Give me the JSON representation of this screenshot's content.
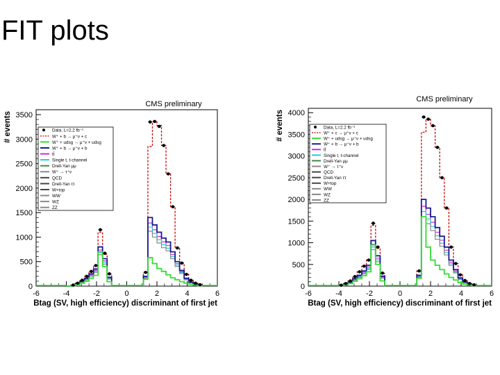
{
  "slide": {
    "title": "FIT plots"
  },
  "colors": {
    "data": "#000000",
    "sum": "#cc0000",
    "wplus_light": "#33dd33",
    "wjets_bb": "#1a1a8c",
    "ttbar": "#dd22dd",
    "single_top": "#22cccc",
    "drellyan": "#448844",
    "qcd": "#444444",
    "diboson": "#888888"
  },
  "chart_data": [
    {
      "type": "bar",
      "title": "CMS preliminary",
      "xlabel": "Btag (SV, high efficiency) discriminant of first jet",
      "ylabel": "# events",
      "xlim": [
        -6,
        6
      ],
      "ylim": [
        0,
        3600
      ],
      "xticks": [
        "-6",
        "-4",
        "-2",
        "0",
        "2",
        "4",
        "6"
      ],
      "yticks": [
        "0",
        "500",
        "1000",
        "1500",
        "2000",
        "2500",
        "3000",
        "3500"
      ],
      "legend_position": "top-left",
      "legend": [
        "Data, L=2.2 fb⁻¹",
        "W⁺ + b → μ⁺ν + c",
        "W⁺ + udsg → μ⁺ν + udsg",
        "W⁺ + b → μ⁺ν + b",
        "tt̄",
        "Single t, t-channel",
        "Drell-Yan μμ",
        "W⁺ → τ⁺ν",
        "QCD",
        "Drell-Yan ττ",
        "W+top",
        "WW",
        "WZ",
        "ZZ"
      ],
      "bin_edges": [
        -4.0,
        -3.7,
        -3.4,
        -3.1,
        -2.8,
        -2.5,
        -2.2,
        -1.9,
        -1.6,
        -1.3,
        -1.0,
        1.1,
        1.4,
        1.7,
        2.0,
        2.3,
        2.6,
        2.9,
        3.2,
        3.5,
        3.8,
        4.1,
        4.4,
        4.7,
        5.0
      ],
      "series": [
        {
          "name": "Data, L=2.2 fb⁻¹",
          "style": "points",
          "values": [
            0,
            20,
            60,
            120,
            200,
            300,
            420,
            1150,
            670,
            250,
            null,
            280,
            3350,
            3360,
            3260,
            2870,
            2290,
            1620,
            780,
            470,
            240,
            120,
            60,
            30
          ]
        },
        {
          "name": "W⁺ + b → μ⁺ν + c",
          "style": "dashed",
          "values": [
            0,
            20,
            60,
            120,
            200,
            300,
            420,
            1100,
            650,
            240,
            null,
            280,
            2850,
            3350,
            3280,
            2870,
            2290,
            1620,
            780,
            470,
            240,
            120,
            60,
            30
          ]
        },
        {
          "name": "W⁺ + b → μ⁺ν + b",
          "style": "step",
          "values": [
            0,
            15,
            50,
            100,
            160,
            250,
            350,
            800,
            560,
            180,
            null,
            200,
            1400,
            1250,
            1100,
            980,
            900,
            700,
            500,
            320,
            160,
            80,
            40,
            20
          ]
        },
        {
          "name": "W⁺ + udsg → μ⁺ν + udsg",
          "style": "step",
          "values": [
            0,
            10,
            30,
            60,
            100,
            160,
            220,
            700,
            400,
            90,
            null,
            140,
            580,
            460,
            360,
            300,
            230,
            170,
            130,
            90,
            60,
            35,
            20,
            10
          ]
        }
      ]
    },
    {
      "type": "bar",
      "title": "CMS preliminary",
      "xlabel": "Btag (SV, high efficiency) discriminant of first jet",
      "ylabel": "# events",
      "xlim": [
        -6,
        6
      ],
      "ylim": [
        0,
        4100
      ],
      "xticks": [
        "-6",
        "-4",
        "-2",
        "0",
        "2",
        "4",
        "6"
      ],
      "yticks": [
        "0",
        "500",
        "1000",
        "1500",
        "2000",
        "2500",
        "3000",
        "3500",
        "4000"
      ],
      "legend_position": "top-left",
      "legend": [
        "Data, L=2.2 fb⁻¹",
        "W⁺ + c → μ⁺ν + c",
        "W⁺ + udsg → μ⁺ν + udsg",
        "W⁺ + b → μ⁺ν + b",
        "tt̄",
        "Single t, t-channel",
        "Drell-Yan μμ",
        "W⁺ → τ⁺ν",
        "QCD",
        "Drell-Yan ττ",
        "W+top",
        "WW",
        "WZ",
        "ZZ"
      ],
      "bin_edges": [
        -4.0,
        -3.7,
        -3.4,
        -3.1,
        -2.8,
        -2.5,
        -2.2,
        -1.9,
        -1.6,
        -1.3,
        -1.0,
        1.1,
        1.4,
        1.7,
        2.0,
        2.3,
        2.6,
        2.9,
        3.2,
        3.5,
        3.8,
        4.1,
        4.4,
        4.7,
        5.0
      ],
      "series": [
        {
          "name": "Data, L=2.2 fb⁻¹",
          "style": "points",
          "values": [
            20,
            60,
            120,
            220,
            330,
            460,
            600,
            1450,
            900,
            300,
            null,
            350,
            3900,
            3850,
            3700,
            3200,
            2500,
            1800,
            900,
            520,
            260,
            130,
            60,
            30
          ]
        },
        {
          "name": "W⁺ + c → μ⁺ν + c",
          "style": "dashed",
          "values": [
            20,
            60,
            120,
            220,
            330,
            460,
            600,
            1400,
            870,
            290,
            null,
            350,
            3550,
            3850,
            3700,
            3200,
            2500,
            1800,
            900,
            520,
            260,
            130,
            60,
            30
          ]
        },
        {
          "name": "W⁺ + b → μ⁺ν + b",
          "style": "step",
          "values": [
            15,
            45,
            90,
            170,
            250,
            350,
            480,
            1050,
            700,
            230,
            null,
            250,
            2000,
            1800,
            1600,
            1350,
            1150,
            900,
            600,
            380,
            190,
            95,
            45,
            20
          ]
        },
        {
          "name": "W⁺ + udsg → μ⁺ν + udsg",
          "style": "step",
          "values": [
            10,
            30,
            60,
            110,
            170,
            240,
            330,
            950,
            500,
            120,
            null,
            180,
            1600,
            900,
            600,
            480,
            380,
            280,
            200,
            140,
            80,
            45,
            25,
            12
          ]
        }
      ]
    }
  ]
}
